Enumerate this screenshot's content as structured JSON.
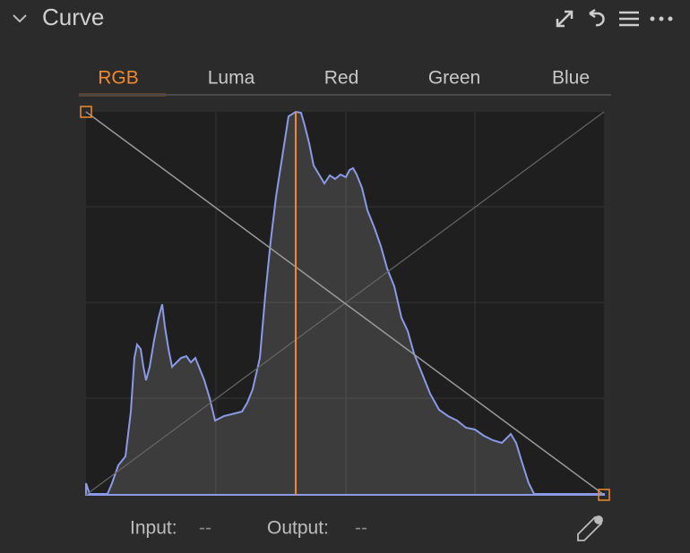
{
  "header": {
    "title": "Curve"
  },
  "tabs": [
    "RGB",
    "Luma",
    "Red",
    "Green",
    "Blue"
  ],
  "active_tab": 0,
  "footer": {
    "input_label": "Input:",
    "input_value": "--",
    "output_label": "Output:",
    "output_value": "--"
  }
}
